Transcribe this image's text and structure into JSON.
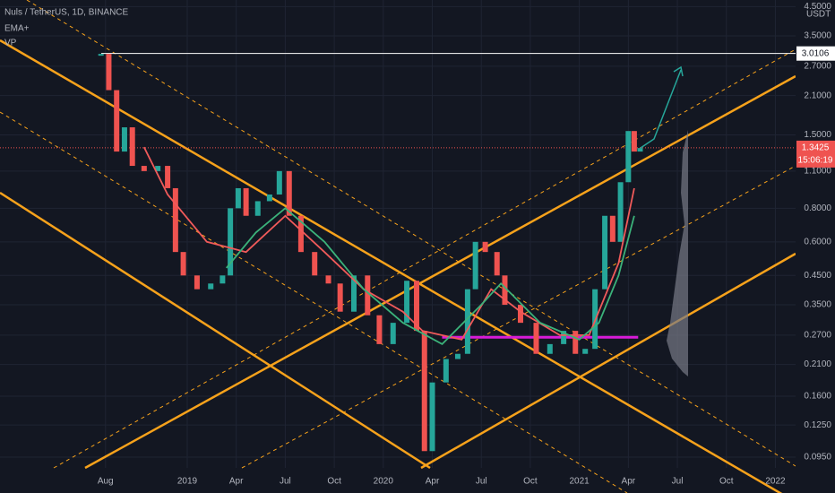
{
  "chart_data": {
    "type": "candlestick",
    "title": "Nuls / TetherUS, 1D, BINANCE",
    "indicators": [
      "EMA+",
      "VP"
    ],
    "currency": "USDT",
    "log_scale": true,
    "grid": true,
    "ylim": [
      0.0866,
      4.76
    ],
    "yticks": [
      {
        "value": 4.5,
        "label": "4.5000"
      },
      {
        "value": 3.5,
        "label": "3.5000"
      },
      {
        "value": 2.7,
        "label": "2.7000"
      },
      {
        "value": 2.1,
        "label": "2.1000"
      },
      {
        "value": 1.5,
        "label": "1.5000"
      },
      {
        "value": 1.1,
        "label": "1.1000"
      },
      {
        "value": 0.8,
        "label": "0.8000"
      },
      {
        "value": 0.6,
        "label": "0.6000"
      },
      {
        "value": 0.45,
        "label": "0.4500"
      },
      {
        "value": 0.35,
        "label": "0.3500"
      },
      {
        "value": 0.27,
        "label": "0.2700"
      },
      {
        "value": 0.21,
        "label": "0.2100"
      },
      {
        "value": 0.16,
        "label": "0.1600"
      },
      {
        "value": 0.125,
        "label": "0.1250"
      },
      {
        "value": 0.095,
        "label": "0.0950"
      }
    ],
    "xlim": [
      2018.045,
      2022.103
    ],
    "xticks": [
      {
        "value": 2018.583,
        "label": "Aug"
      },
      {
        "value": 2019,
        "label": "2019"
      },
      {
        "value": 2019.25,
        "label": "Apr"
      },
      {
        "value": 2019.5,
        "label": "Jul"
      },
      {
        "value": 2019.75,
        "label": "Oct"
      },
      {
        "value": 2020,
        "label": "2020"
      },
      {
        "value": 2020.25,
        "label": "Apr"
      },
      {
        "value": 2020.5,
        "label": "Jul"
      },
      {
        "value": 2020.75,
        "label": "Oct"
      },
      {
        "value": 2021,
        "label": "2021"
      },
      {
        "value": 2021.25,
        "label": "Apr"
      },
      {
        "value": 2021.5,
        "label": "Jul"
      },
      {
        "value": 2021.75,
        "label": "Oct"
      },
      {
        "value": 2022,
        "label": "2022"
      }
    ],
    "price": {
      "x": [
        2018.56,
        2018.6,
        2018.64,
        2018.68,
        2018.72,
        2018.78,
        2018.85,
        2018.9,
        2018.94,
        2018.98,
        2019.05,
        2019.12,
        2019.18,
        2019.22,
        2019.26,
        2019.3,
        2019.36,
        2019.42,
        2019.47,
        2019.52,
        2019.58,
        2019.65,
        2019.72,
        2019.78,
        2019.85,
        2019.92,
        2019.98,
        2020.05,
        2020.12,
        2020.17,
        2020.21,
        2020.25,
        2020.32,
        2020.38,
        2020.43,
        2020.47,
        2020.52,
        2020.58,
        2020.62,
        2020.7,
        2020.78,
        2020.85,
        2020.92,
        2020.98,
        2021.03,
        2021.08,
        2021.13,
        2021.17,
        2021.21,
        2021.25,
        2021.28,
        2021.31
      ],
      "values": [
        3.0,
        2.2,
        1.3,
        1.6,
        1.15,
        1.1,
        1.15,
        0.95,
        0.55,
        0.45,
        0.4,
        0.42,
        0.45,
        0.8,
        0.95,
        0.75,
        0.85,
        0.9,
        1.1,
        0.75,
        0.55,
        0.45,
        0.42,
        0.33,
        0.45,
        0.32,
        0.25,
        0.3,
        0.43,
        0.28,
        0.1,
        0.18,
        0.22,
        0.23,
        0.4,
        0.6,
        0.55,
        0.45,
        0.35,
        0.3,
        0.23,
        0.25,
        0.28,
        0.23,
        0.24,
        0.4,
        0.75,
        0.6,
        1.0,
        1.55,
        1.3,
        1.34
      ],
      "up_color": "#26a69a",
      "down_color": "#ef5350"
    },
    "series": [
      {
        "color": "#f05a5a",
        "x": [
          2018.78,
          2018.9,
          2019.1,
          2019.3,
          2019.5,
          2019.7,
          2019.9,
          2020.1,
          2020.2,
          2020.4,
          2020.55,
          2020.7,
          2020.9,
          2021.05,
          2021.2,
          2021.28
        ],
        "values": [
          1.35,
          0.9,
          0.6,
          0.55,
          0.75,
          0.55,
          0.4,
          0.33,
          0.28,
          0.26,
          0.4,
          0.33,
          0.27,
          0.27,
          0.5,
          0.95
        ]
      },
      {
        "color": "#3bb27a",
        "x": [
          2019.2,
          2019.35,
          2019.5,
          2019.7,
          2019.9,
          2020.1,
          2020.3,
          2020.5,
          2020.6,
          2020.8,
          2021.0,
          2021.1,
          2021.2,
          2021.28
        ],
        "values": [
          0.48,
          0.65,
          0.8,
          0.6,
          0.4,
          0.3,
          0.25,
          0.35,
          0.42,
          0.3,
          0.26,
          0.3,
          0.45,
          0.75
        ]
      }
    ],
    "levels": {
      "high": 3.0106,
      "last": 1.3425,
      "countdown": "15:06:19",
      "support": 0.265,
      "support_x": [
        2020.3,
        2021.3
      ]
    }
  }
}
